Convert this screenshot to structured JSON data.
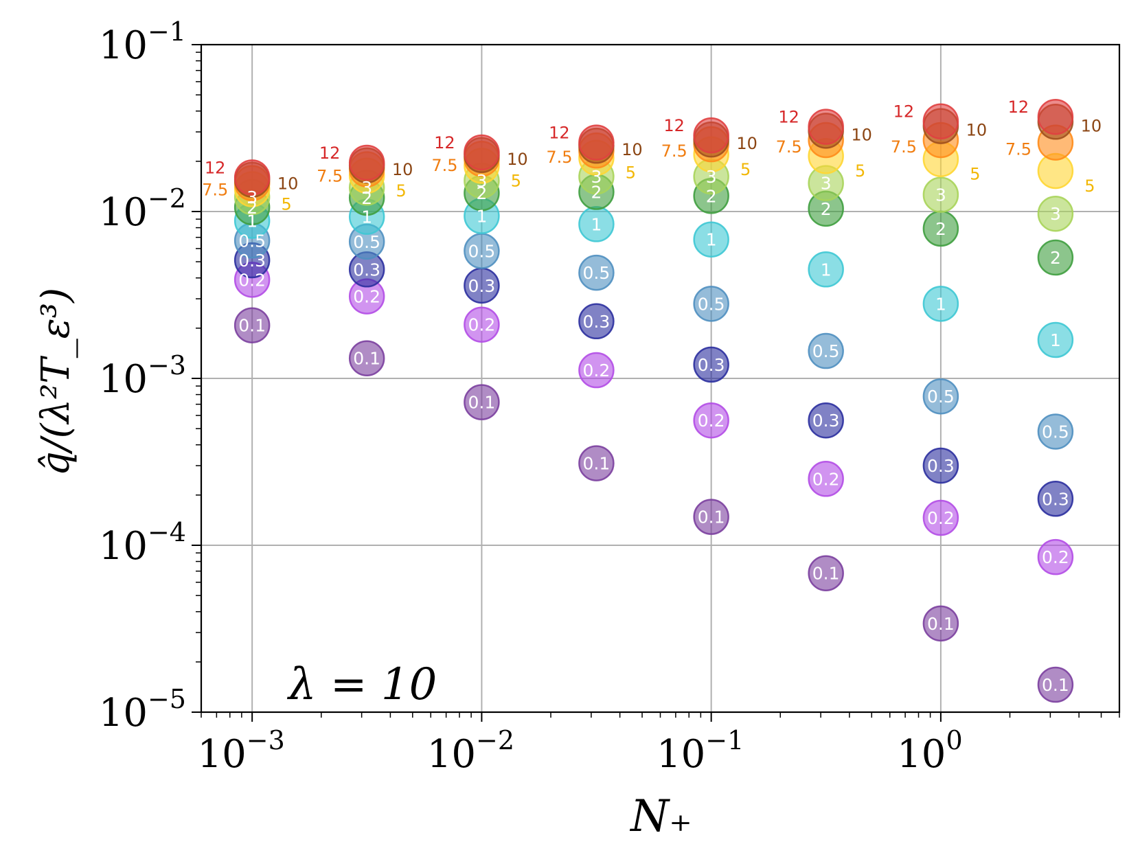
{
  "chart_data": {
    "type": "scatter",
    "xscale": "log",
    "yscale": "log",
    "xlim": [
      0.0006,
      6
    ],
    "ylim": [
      1e-05,
      0.1
    ],
    "grid": true,
    "xlabel": "N₊",
    "ylabel": "q̂/(λ²T_ε³)",
    "annotation": "λ = 10",
    "x_ticks": [
      {
        "value": 0.001,
        "base": "10",
        "exp": "−3"
      },
      {
        "value": 0.01,
        "base": "10",
        "exp": "−2"
      },
      {
        "value": 0.1,
        "base": "10",
        "exp": "−1"
      },
      {
        "value": 1,
        "base": "10",
        "exp": "0"
      }
    ],
    "y_ticks": [
      {
        "value": 0.1,
        "base": "10",
        "exp": "−1"
      },
      {
        "value": 0.01,
        "base": "10",
        "exp": "−2"
      },
      {
        "value": 0.001,
        "base": "10",
        "exp": "−3"
      },
      {
        "value": 0.0001,
        "base": "10",
        "exp": "−4"
      },
      {
        "value": 1e-05,
        "base": "10",
        "exp": "−5"
      }
    ],
    "x": [
      0.001,
      0.00316,
      0.01,
      0.0316,
      0.1,
      0.316,
      1,
      3.16
    ],
    "series": [
      {
        "name": "0.1",
        "color": "#7b3f9e",
        "label_color": "#ffffff",
        "values": [
          0.00208,
          0.00132,
          0.00072,
          0.00031,
          0.000148,
          6.8e-05,
          3.4e-05,
          1.46e-05
        ]
      },
      {
        "name": "0.2",
        "color": "#b24ce6",
        "label_color": "#ffffff",
        "values": [
          0.0039,
          0.0031,
          0.0021,
          0.00112,
          0.00056,
          0.00025,
          0.000146,
          8.5e-05
        ]
      },
      {
        "name": "0.3",
        "color": "#2b2f9e",
        "label_color": "#ffffff",
        "values": [
          0.0051,
          0.0045,
          0.0036,
          0.0022,
          0.00121,
          0.00056,
          0.0003,
          0.00019
        ]
      },
      {
        "name": "0.5",
        "color": "#4f8fc0",
        "label_color": "#ffffff",
        "values": [
          0.0067,
          0.0066,
          0.0058,
          0.0043,
          0.0028,
          0.00146,
          0.00078,
          0.00048
        ]
      },
      {
        "name": "1",
        "color": "#3ec8d4",
        "label_color": "#ffffff",
        "values": [
          0.0088,
          0.0093,
          0.0094,
          0.0084,
          0.0068,
          0.0045,
          0.0028,
          0.0017
        ]
      },
      {
        "name": "2",
        "color": "#3f9e3f",
        "label_color": "#ffffff",
        "values": [
          0.0106,
          0.0121,
          0.0129,
          0.0131,
          0.0124,
          0.0104,
          0.0079,
          0.0053
        ]
      },
      {
        "name": "3",
        "color": "#a8d45a",
        "label_color": "#ffffff",
        "values": [
          0.0122,
          0.0139,
          0.0153,
          0.0162,
          0.0162,
          0.0148,
          0.0126,
          0.0097
        ]
      },
      {
        "name": "5",
        "color": "#ffd633",
        "label_color": "#f2b705",
        "values": [
          0.0136,
          0.0164,
          0.0188,
          0.021,
          0.022,
          0.0215,
          0.0206,
          0.0175
        ]
      },
      {
        "name": "7.5",
        "color": "#ff8c1a",
        "label_color": "#f07d10",
        "values": [
          0.0148,
          0.0179,
          0.0207,
          0.0232,
          0.0253,
          0.0268,
          0.0268,
          0.0259
        ]
      },
      {
        "name": "10",
        "color": "#a0501e",
        "label_color": "#8b4513",
        "values": [
          0.0155,
          0.0189,
          0.0218,
          0.0248,
          0.027,
          0.0305,
          0.0325,
          0.0345
        ]
      },
      {
        "name": "12",
        "color": "#e04040",
        "label_color": "#d62728",
        "values": [
          0.016,
          0.0196,
          0.0226,
          0.0259,
          0.0286,
          0.0322,
          0.0347,
          0.0369
        ]
      }
    ]
  }
}
